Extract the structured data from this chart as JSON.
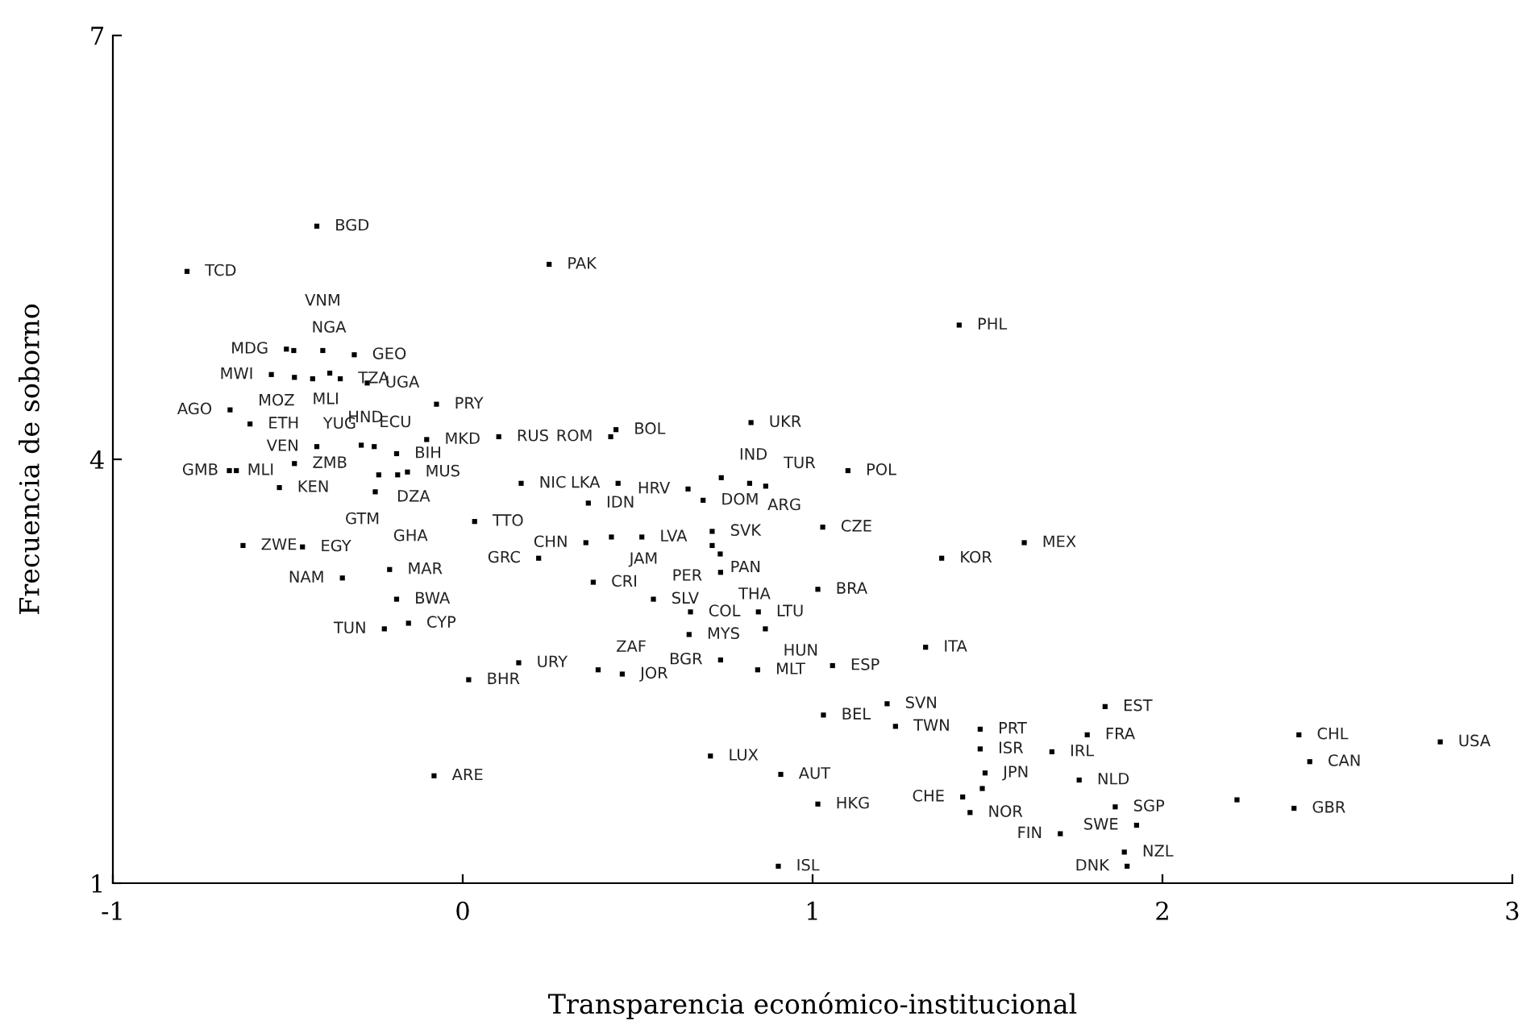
{
  "chart_data": {
    "type": "scatter",
    "xlabel": "Transparencia económico-institucional",
    "ylabel": "Frecuencia de soborno",
    "xlim": [
      -1,
      3
    ],
    "ylim": [
      1,
      7
    ],
    "xticks": [
      -1,
      0,
      1,
      2,
      3
    ],
    "yticks": [
      1,
      4,
      7
    ],
    "grid": false,
    "legend": false,
    "marker": "square",
    "series": [
      {
        "color": "#000000",
        "x": [
          -0.417,
          -0.788,
          -0.504,
          -0.483,
          -0.4,
          -0.31,
          -0.547,
          -0.481,
          -0.429,
          -0.38,
          -0.35,
          -0.273,
          -0.075,
          -0.665,
          -0.608,
          -0.417,
          -0.29,
          -0.253,
          -0.189,
          -0.103,
          0.103,
          -0.667,
          -0.647,
          -0.481,
          -0.24,
          -0.186,
          -0.158,
          -0.524,
          -0.25,
          0.167,
          0.034,
          -0.628,
          -0.458,
          -0.344,
          -0.209,
          -0.189,
          -0.224,
          -0.155,
          0.16,
          0.017,
          -0.082,
          0.247,
          0.824,
          0.438,
          0.423,
          0.739,
          0.644,
          0.82,
          0.866,
          1.101,
          0.444,
          0.359,
          0.687,
          1.029,
          0.352,
          0.425,
          0.512,
          0.713,
          0.713,
          0.736,
          0.737,
          0.217,
          0.373,
          0.545,
          0.651,
          0.845,
          1.015,
          0.647,
          0.865,
          0.737,
          0.843,
          1.057,
          0.387,
          0.456,
          1.213,
          1.031,
          1.323,
          1.237,
          1.479,
          1.479,
          1.684,
          1.836,
          1.785,
          1.493,
          1.762,
          1.429,
          1.485,
          1.45,
          1.865,
          1.926,
          1.708,
          1.891,
          1.899,
          0.708,
          0.909,
          1.015,
          0.902,
          1.419,
          1.605,
          1.369,
          2.39,
          2.421,
          2.794,
          2.213,
          2.376
        ],
        "values": [
          5.65,
          5.33,
          4.78,
          4.77,
          4.77,
          4.74,
          4.6,
          4.58,
          4.57,
          4.61,
          4.57,
          4.54,
          4.39,
          4.35,
          4.25,
          4.09,
          4.1,
          4.09,
          4.04,
          4.14,
          4.16,
          3.92,
          3.92,
          3.97,
          3.89,
          3.89,
          3.91,
          3.8,
          3.77,
          3.83,
          3.56,
          3.39,
          3.38,
          3.16,
          3.22,
          3.01,
          2.8,
          2.84,
          2.56,
          2.44,
          1.76,
          5.38,
          4.26,
          4.21,
          4.16,
          3.87,
          3.79,
          3.83,
          3.81,
          3.92,
          3.83,
          3.69,
          3.71,
          3.52,
          3.41,
          3.45,
          3.45,
          3.49,
          3.39,
          3.33,
          3.2,
          3.3,
          3.13,
          3.01,
          2.92,
          2.92,
          3.08,
          2.76,
          2.8,
          2.58,
          2.51,
          2.54,
          2.51,
          2.48,
          2.27,
          2.19,
          2.67,
          2.11,
          2.09,
          1.95,
          1.93,
          2.25,
          2.05,
          1.78,
          1.73,
          1.61,
          1.67,
          1.5,
          1.54,
          1.41,
          1.35,
          1.22,
          1.12,
          1.9,
          1.77,
          1.56,
          1.12,
          4.95,
          3.41,
          3.3,
          2.05,
          1.86,
          2.0,
          1.59,
          1.53
        ]
      }
    ],
    "annotations": [
      {
        "text": "BGD",
        "x": -0.417,
        "y": 5.65
      },
      {
        "text": "TCD",
        "x": -0.788,
        "y": 5.33
      },
      {
        "text": "MDG",
        "x": -0.504,
        "y": 4.78
      },
      {
        "text": "NGA",
        "x": -0.483,
        "y": 4.77
      },
      {
        "text": "VNM",
        "x": -0.4,
        "y": 4.77
      },
      {
        "text": "GEO",
        "x": -0.31,
        "y": 4.74
      },
      {
        "text": "MWI",
        "x": -0.547,
        "y": 4.6
      },
      {
        "text": "MLI",
        "x": -0.481,
        "y": 4.58
      },
      {
        "text": "MOZ",
        "x": -0.429,
        "y": 4.57
      },
      {
        "text": "HND",
        "x": -0.38,
        "y": 4.61
      },
      {
        "text": "TZA",
        "x": -0.35,
        "y": 4.57
      },
      {
        "text": "UGA",
        "x": -0.273,
        "y": 4.54
      },
      {
        "text": "PRY",
        "x": -0.075,
        "y": 4.39
      },
      {
        "text": "AGO",
        "x": -0.665,
        "y": 4.35
      },
      {
        "text": "ETH",
        "x": -0.608,
        "y": 4.25
      },
      {
        "text": "VEN",
        "x": -0.417,
        "y": 4.09
      },
      {
        "text": "ECU",
        "x": -0.29,
        "y": 4.1
      },
      {
        "text": "YUG",
        "x": -0.253,
        "y": 4.09
      },
      {
        "text": "BIH",
        "x": -0.189,
        "y": 4.04
      },
      {
        "text": "MKD",
        "x": -0.103,
        "y": 4.14
      },
      {
        "text": "RUS",
        "x": 0.103,
        "y": 4.16
      },
      {
        "text": "MLI",
        "x": -0.667,
        "y": 3.92
      },
      {
        "text": "GMB",
        "x": -0.647,
        "y": 3.92
      },
      {
        "text": "ZMB",
        "x": -0.481,
        "y": 3.97
      },
      {
        "text": "DZA",
        "x": -0.24,
        "y": 3.89
      },
      {
        "text": "GTM",
        "x": -0.186,
        "y": 3.89
      },
      {
        "text": "MUS",
        "x": -0.158,
        "y": 3.91
      },
      {
        "text": "KEN",
        "x": -0.524,
        "y": 3.8
      },
      {
        "text": "GHA",
        "x": -0.25,
        "y": 3.77
      },
      {
        "text": "NIC",
        "x": 0.167,
        "y": 3.83
      },
      {
        "text": "TTO",
        "x": 0.034,
        "y": 3.56
      },
      {
        "text": "ZWE",
        "x": -0.628,
        "y": 3.39
      },
      {
        "text": "EGY",
        "x": -0.458,
        "y": 3.38
      },
      {
        "text": "NAM",
        "x": -0.344,
        "y": 3.16
      },
      {
        "text": "MAR",
        "x": -0.209,
        "y": 3.22
      },
      {
        "text": "BWA",
        "x": -0.189,
        "y": 3.01
      },
      {
        "text": "TUN",
        "x": -0.224,
        "y": 2.8
      },
      {
        "text": "CYP",
        "x": -0.155,
        "y": 2.84
      },
      {
        "text": "URY",
        "x": 0.16,
        "y": 2.56
      },
      {
        "text": "BHR",
        "x": 0.017,
        "y": 2.44
      },
      {
        "text": "ARE",
        "x": -0.082,
        "y": 1.76
      },
      {
        "text": "PAK",
        "x": 0.247,
        "y": 5.38
      },
      {
        "text": "UKR",
        "x": 0.824,
        "y": 4.26
      },
      {
        "text": "BOL",
        "x": 0.438,
        "y": 4.21
      },
      {
        "text": "ROM",
        "x": 0.423,
        "y": 4.16
      },
      {
        "text": "IND",
        "x": 0.739,
        "y": 3.87
      },
      {
        "text": "HRV",
        "x": 0.644,
        "y": 3.79
      },
      {
        "text": "ARG",
        "x": 0.82,
        "y": 3.83
      },
      {
        "text": "TUR",
        "x": 0.866,
        "y": 3.81
      },
      {
        "text": "POL",
        "x": 1.101,
        "y": 3.92
      },
      {
        "text": "LKA",
        "x": 0.444,
        "y": 3.83
      },
      {
        "text": "IDN",
        "x": 0.359,
        "y": 3.69
      },
      {
        "text": "DOM",
        "x": 0.687,
        "y": 3.71
      },
      {
        "text": "CZE",
        "x": 1.029,
        "y": 3.52
      },
      {
        "text": "CHN",
        "x": 0.352,
        "y": 3.41
      },
      {
        "text": "JAM",
        "x": 0.425,
        "y": 3.45
      },
      {
        "text": "LVA",
        "x": 0.512,
        "y": 3.45
      },
      {
        "text": "SVK",
        "x": 0.713,
        "y": 3.49
      },
      {
        "text": "PAN",
        "x": 0.713,
        "y": 3.39
      },
      {
        "text": "PER",
        "x": 0.736,
        "y": 3.33
      },
      {
        "text": "THA",
        "x": 0.737,
        "y": 3.2
      },
      {
        "text": "GRC",
        "x": 0.217,
        "y": 3.3
      },
      {
        "text": "CRI",
        "x": 0.373,
        "y": 3.13
      },
      {
        "text": "SLV",
        "x": 0.545,
        "y": 3.01
      },
      {
        "text": "COL",
        "x": 0.651,
        "y": 2.92
      },
      {
        "text": "LTU",
        "x": 0.845,
        "y": 2.92
      },
      {
        "text": "BRA",
        "x": 1.015,
        "y": 3.08
      },
      {
        "text": "MYS",
        "x": 0.647,
        "y": 2.76
      },
      {
        "text": "HUN",
        "x": 0.865,
        "y": 2.8
      },
      {
        "text": "BGR",
        "x": 0.737,
        "y": 2.58
      },
      {
        "text": "MLT",
        "x": 0.843,
        "y": 2.51
      },
      {
        "text": "ESP",
        "x": 1.057,
        "y": 2.54
      },
      {
        "text": "ZAF",
        "x": 0.387,
        "y": 2.51
      },
      {
        "text": "JOR",
        "x": 0.456,
        "y": 2.48
      },
      {
        "text": "SVN",
        "x": 1.213,
        "y": 2.27
      },
      {
        "text": "BEL",
        "x": 1.031,
        "y": 2.19
      },
      {
        "text": "ITA",
        "x": 1.323,
        "y": 2.67
      },
      {
        "text": "TWN",
        "x": 1.237,
        "y": 2.11
      },
      {
        "text": "PRT",
        "x": 1.479,
        "y": 2.09
      },
      {
        "text": "ISR",
        "x": 1.479,
        "y": 1.95
      },
      {
        "text": "IRL",
        "x": 1.684,
        "y": 1.93
      },
      {
        "text": "EST",
        "x": 1.836,
        "y": 2.25
      },
      {
        "text": "FRA",
        "x": 1.785,
        "y": 2.05
      },
      {
        "text": "JPN",
        "x": 1.493,
        "y": 1.78
      },
      {
        "text": "NLD",
        "x": 1.762,
        "y": 1.73
      },
      {
        "text": "CHE",
        "x": 1.429,
        "y": 1.61
      },
      {
        "text": "NOR",
        "x": 1.45,
        "y": 1.5
      },
      {
        "text": "SGP",
        "x": 1.865,
        "y": 1.54
      },
      {
        "text": "SWE",
        "x": 1.926,
        "y": 1.41
      },
      {
        "text": "FIN",
        "x": 1.708,
        "y": 1.35
      },
      {
        "text": "NZL",
        "x": 1.891,
        "y": 1.22
      },
      {
        "text": "DNK",
        "x": 1.899,
        "y": 1.12
      },
      {
        "text": "LUX",
        "x": 0.708,
        "y": 1.9
      },
      {
        "text": "AUT",
        "x": 0.909,
        "y": 1.77
      },
      {
        "text": "HKG",
        "x": 1.015,
        "y": 1.56
      },
      {
        "text": "ISL",
        "x": 0.902,
        "y": 1.12
      },
      {
        "text": "PHL",
        "x": 1.419,
        "y": 4.95
      },
      {
        "text": "MEX",
        "x": 1.605,
        "y": 3.41
      },
      {
        "text": "KOR",
        "x": 1.369,
        "y": 3.3
      },
      {
        "text": "CHL",
        "x": 2.39,
        "y": 2.05
      },
      {
        "text": "CAN",
        "x": 2.421,
        "y": 1.86
      },
      {
        "text": "USA",
        "x": 2.794,
        "y": 2.0
      },
      {
        "text": "GBR",
        "x": 2.376,
        "y": 1.53
      }
    ]
  }
}
